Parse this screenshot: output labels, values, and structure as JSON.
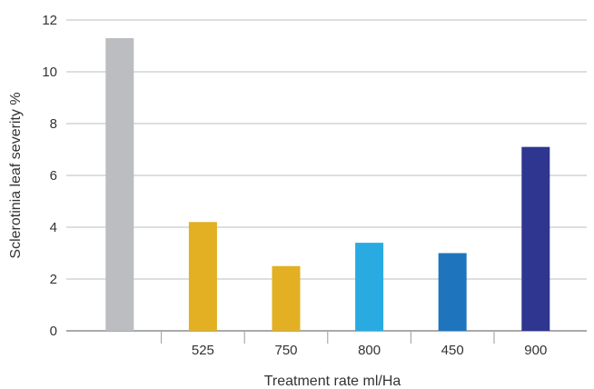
{
  "chart_data": {
    "type": "bar",
    "title": "",
    "xlabel": "Treatment rate ml/Ha",
    "ylabel": "Sclerotinia leaf severity %",
    "ylim": [
      0,
      12
    ],
    "yticks": [
      0,
      2,
      4,
      6,
      8,
      10,
      12
    ],
    "grid": true,
    "categories": [
      "",
      "525",
      "750",
      "800",
      "450",
      "900"
    ],
    "values": [
      11.3,
      4.2,
      2.5,
      3.4,
      3.0,
      7.1
    ],
    "colors": [
      "#bcbdc0",
      "#e2b022",
      "#e2b022",
      "#29abe2",
      "#1f75bd",
      "#2e3690"
    ]
  }
}
